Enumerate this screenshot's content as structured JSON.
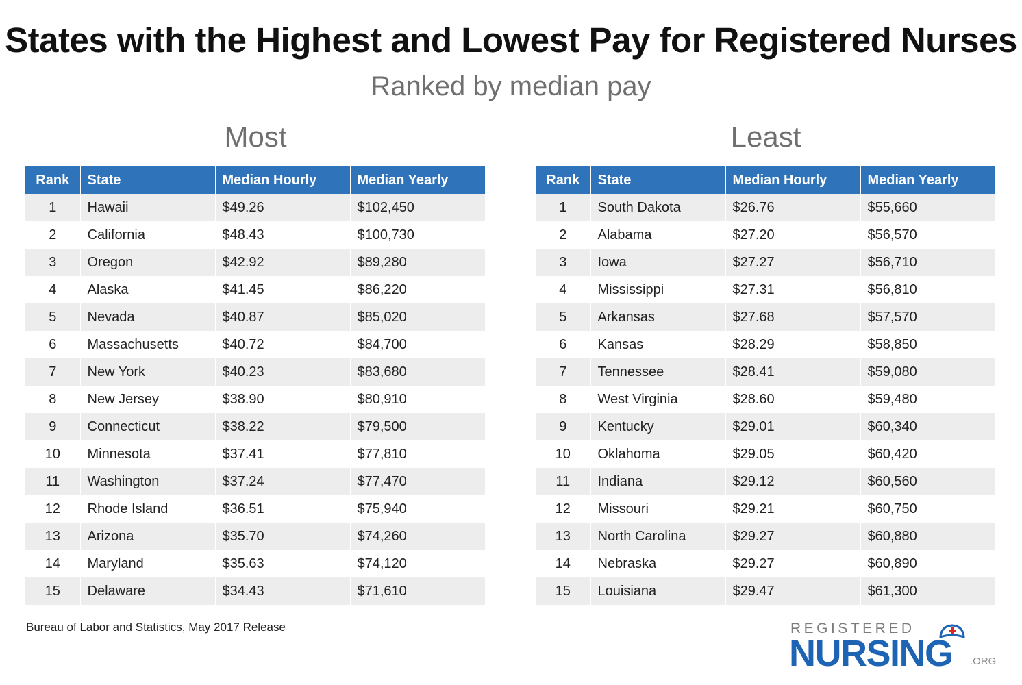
{
  "title": "States with the Highest and Lowest Pay for Registered Nurses",
  "subtitle": "Ranked by median pay",
  "colors": {
    "header_bg": "#2f73bb",
    "stripe": "#ededed",
    "logo_blue": "#1e64b4",
    "logo_cross": "#d9262c"
  },
  "columns": {
    "rank": "Rank",
    "state": "State",
    "hourly": "Median Hourly",
    "yearly": "Median Yearly"
  },
  "most": {
    "heading": "Most",
    "rows": [
      {
        "rank": "1",
        "state": "Hawaii",
        "hourly": "$49.26",
        "yearly": "$102,450"
      },
      {
        "rank": "2",
        "state": "California",
        "hourly": "$48.43",
        "yearly": "$100,730"
      },
      {
        "rank": "3",
        "state": "Oregon",
        "hourly": "$42.92",
        "yearly": "$89,280"
      },
      {
        "rank": "4",
        "state": "Alaska",
        "hourly": "$41.45",
        "yearly": "$86,220"
      },
      {
        "rank": "5",
        "state": "Nevada",
        "hourly": "$40.87",
        "yearly": "$85,020"
      },
      {
        "rank": "6",
        "state": "Massachusetts",
        "hourly": "$40.72",
        "yearly": "$84,700"
      },
      {
        "rank": "7",
        "state": "New York",
        "hourly": "$40.23",
        "yearly": "$83,680"
      },
      {
        "rank": "8",
        "state": "New Jersey",
        "hourly": "$38.90",
        "yearly": "$80,910"
      },
      {
        "rank": "9",
        "state": "Connecticut",
        "hourly": "$38.22",
        "yearly": "$79,500"
      },
      {
        "rank": "10",
        "state": "Minnesota",
        "hourly": "$37.41",
        "yearly": "$77,810"
      },
      {
        "rank": "11",
        "state": "Washington",
        "hourly": "$37.24",
        "yearly": "$77,470"
      },
      {
        "rank": "12",
        "state": "Rhode Island",
        "hourly": "$36.51",
        "yearly": "$75,940"
      },
      {
        "rank": "13",
        "state": "Arizona",
        "hourly": "$35.70",
        "yearly": "$74,260"
      },
      {
        "rank": "14",
        "state": "Maryland",
        "hourly": "$35.63",
        "yearly": "$74,120"
      },
      {
        "rank": "15",
        "state": "Delaware",
        "hourly": "$34.43",
        "yearly": "$71,610"
      }
    ]
  },
  "least": {
    "heading": "Least",
    "rows": [
      {
        "rank": "1",
        "state": "South Dakota",
        "hourly": "$26.76",
        "yearly": "$55,660"
      },
      {
        "rank": "2",
        "state": "Alabama",
        "hourly": "$27.20",
        "yearly": "$56,570"
      },
      {
        "rank": "3",
        "state": "Iowa",
        "hourly": "$27.27",
        "yearly": "$56,710"
      },
      {
        "rank": "4",
        "state": "Mississippi",
        "hourly": "$27.31",
        "yearly": "$56,810"
      },
      {
        "rank": "5",
        "state": "Arkansas",
        "hourly": "$27.68",
        "yearly": "$57,570"
      },
      {
        "rank": "6",
        "state": "Kansas",
        "hourly": "$28.29",
        "yearly": "$58,850"
      },
      {
        "rank": "7",
        "state": "Tennessee",
        "hourly": "$28.41",
        "yearly": "$59,080"
      },
      {
        "rank": "8",
        "state": "West Virginia",
        "hourly": "$28.60",
        "yearly": "$59,480"
      },
      {
        "rank": "9",
        "state": "Kentucky",
        "hourly": "$29.01",
        "yearly": "$60,340"
      },
      {
        "rank": "10",
        "state": "Oklahoma",
        "hourly": "$29.05",
        "yearly": "$60,420"
      },
      {
        "rank": "11",
        "state": "Indiana",
        "hourly": "$29.12",
        "yearly": "$60,560"
      },
      {
        "rank": "12",
        "state": "Missouri",
        "hourly": "$29.21",
        "yearly": "$60,750"
      },
      {
        "rank": "13",
        "state": "North Carolina",
        "hourly": "$29.27",
        "yearly": "$60,880"
      },
      {
        "rank": "14",
        "state": "Nebraska",
        "hourly": "$29.27",
        "yearly": "$60,890"
      },
      {
        "rank": "15",
        "state": "Louisiana",
        "hourly": "$29.47",
        "yearly": "$61,300"
      }
    ]
  },
  "source": "Bureau of Labor and Statistics, May 2017 Release",
  "logo": {
    "top_text": "REGISTERED",
    "main_text": "NURSING",
    "suffix": ".ORG",
    "icon": "nurse-cap-icon"
  }
}
